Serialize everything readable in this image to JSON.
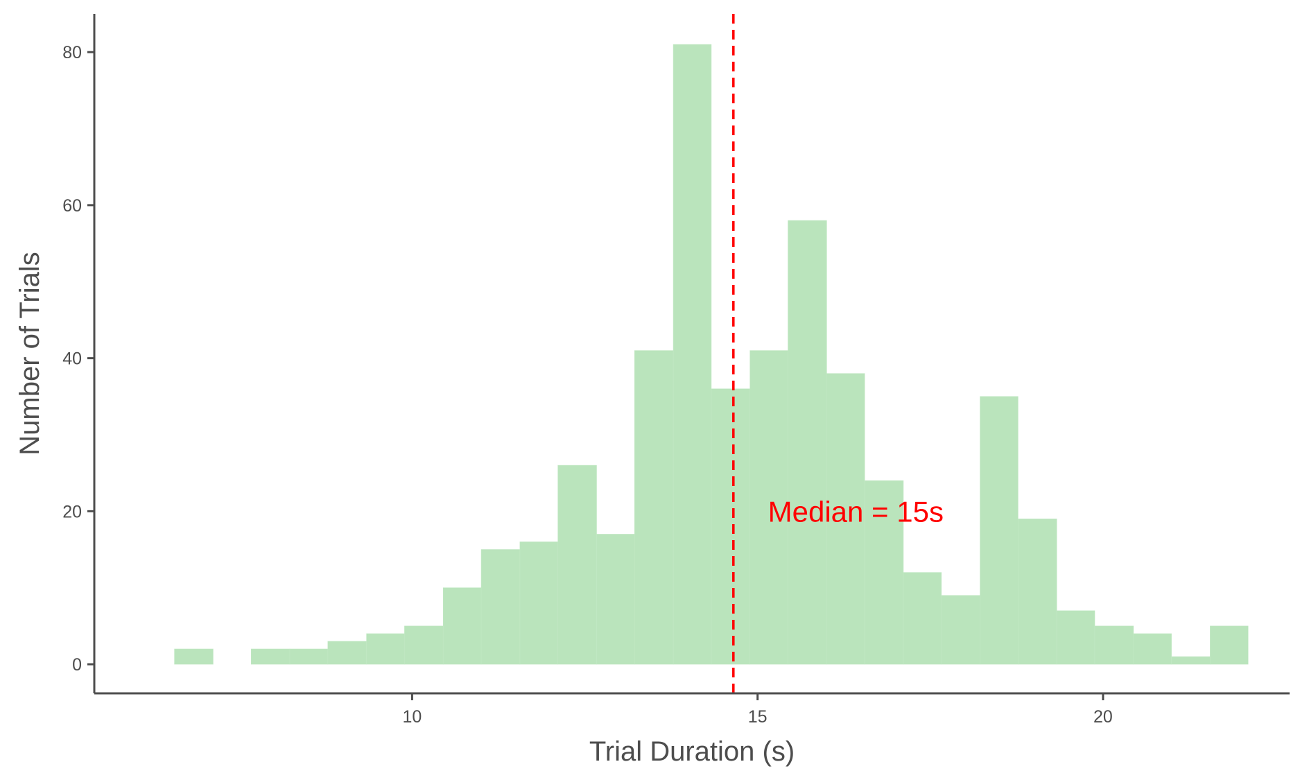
{
  "chart_data": {
    "type": "bar",
    "subtype": "histogram",
    "title": "",
    "xlabel": "Trial Duration (s)",
    "ylabel": "Number of Trials",
    "xlim": [
      5.4,
      22.7
    ],
    "ylim": [
      -3.8,
      85
    ],
    "x_ticks": [
      10,
      15,
      20
    ],
    "y_ticks": [
      0,
      20,
      40,
      60,
      80
    ],
    "x_tick_labels": [
      "10",
      "15",
      "20"
    ],
    "y_tick_labels": [
      "0",
      "20",
      "40",
      "60",
      "80"
    ],
    "grid": false,
    "legend": "none",
    "bin_width": 0.555,
    "bins": [
      {
        "start": 6.56,
        "end": 7.12,
        "count": 2
      },
      {
        "start": 7.12,
        "end": 7.67,
        "count": 0
      },
      {
        "start": 7.67,
        "end": 8.23,
        "count": 2
      },
      {
        "start": 8.23,
        "end": 8.78,
        "count": 2
      },
      {
        "start": 8.78,
        "end": 9.34,
        "count": 3
      },
      {
        "start": 9.34,
        "end": 9.89,
        "count": 4
      },
      {
        "start": 9.89,
        "end": 10.45,
        "count": 5
      },
      {
        "start": 10.45,
        "end": 11.0,
        "count": 10
      },
      {
        "start": 11.0,
        "end": 11.56,
        "count": 15
      },
      {
        "start": 11.56,
        "end": 12.11,
        "count": 16
      },
      {
        "start": 12.11,
        "end": 12.67,
        "count": 26
      },
      {
        "start": 12.67,
        "end": 13.22,
        "count": 17
      },
      {
        "start": 13.22,
        "end": 13.78,
        "count": 41
      },
      {
        "start": 13.78,
        "end": 14.33,
        "count": 81
      },
      {
        "start": 14.33,
        "end": 14.89,
        "count": 36
      },
      {
        "start": 14.89,
        "end": 15.44,
        "count": 41
      },
      {
        "start": 15.44,
        "end": 16.0,
        "count": 58
      },
      {
        "start": 16.0,
        "end": 16.55,
        "count": 38
      },
      {
        "start": 16.55,
        "end": 17.11,
        "count": 24
      },
      {
        "start": 17.11,
        "end": 17.66,
        "count": 12
      },
      {
        "start": 17.66,
        "end": 18.22,
        "count": 9
      },
      {
        "start": 18.22,
        "end": 18.77,
        "count": 35
      },
      {
        "start": 18.77,
        "end": 19.33,
        "count": 19
      },
      {
        "start": 19.33,
        "end": 19.88,
        "count": 7
      },
      {
        "start": 19.88,
        "end": 20.44,
        "count": 5
      },
      {
        "start": 20.44,
        "end": 20.99,
        "count": 4
      },
      {
        "start": 20.99,
        "end": 21.55,
        "count": 1
      },
      {
        "start": 21.55,
        "end": 22.1,
        "count": 5
      }
    ],
    "median_line": {
      "x": 14.65,
      "color": "#ff0000",
      "style": "dashed"
    },
    "annotation": {
      "text": "Median = 15s",
      "x": 15.15,
      "y": 20,
      "color": "#ff0000"
    },
    "colors": {
      "bar_fill": "#bae4bc",
      "axis": "#4d4d4d",
      "text": "#4d4d4d"
    }
  }
}
